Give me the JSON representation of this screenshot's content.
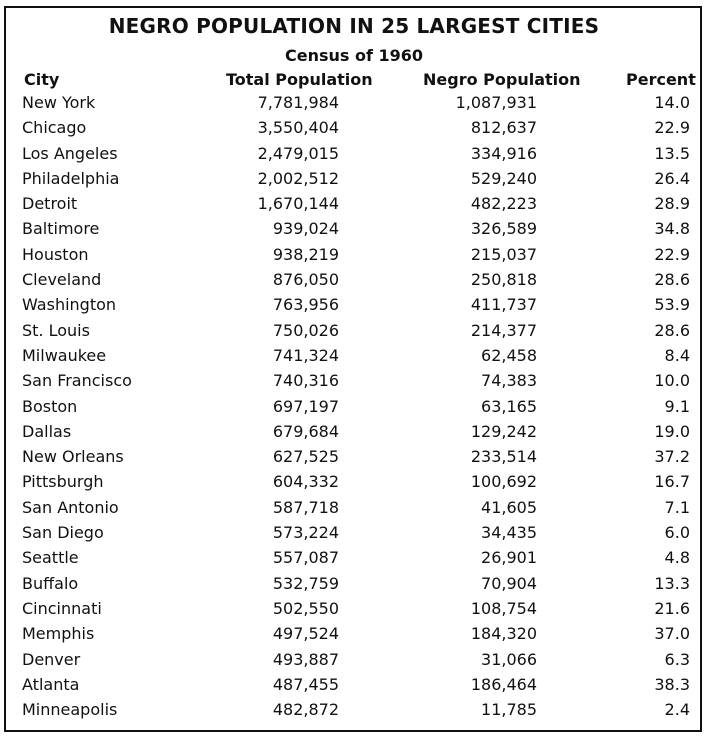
{
  "title": "NEGRO POPULATION IN 25 LARGEST CITIES",
  "subtitle": "Census of 1960",
  "headers": {
    "city": "City",
    "total": "Total Population",
    "negro": "Negro Population",
    "percent": "Percent"
  },
  "rows": [
    {
      "city": "New York",
      "total": "7,781,984",
      "negro": "1,087,931",
      "percent": "14.0"
    },
    {
      "city": "Chicago",
      "total": "3,550,404",
      "negro": "812,637",
      "percent": "22.9"
    },
    {
      "city": "Los Angeles",
      "total": "2,479,015",
      "negro": "334,916",
      "percent": "13.5"
    },
    {
      "city": "Philadelphia",
      "total": "2,002,512",
      "negro": "529,240",
      "percent": "26.4"
    },
    {
      "city": "Detroit",
      "total": "1,670,144",
      "negro": "482,223",
      "percent": "28.9"
    },
    {
      "city": "Baltimore",
      "total": "939,024",
      "negro": "326,589",
      "percent": "34.8"
    },
    {
      "city": "Houston",
      "total": "938,219",
      "negro": "215,037",
      "percent": "22.9"
    },
    {
      "city": "Cleveland",
      "total": "876,050",
      "negro": "250,818",
      "percent": "28.6"
    },
    {
      "city": "Washington",
      "total": "763,956",
      "negro": "411,737",
      "percent": "53.9"
    },
    {
      "city": "St. Louis",
      "total": "750,026",
      "negro": "214,377",
      "percent": "28.6"
    },
    {
      "city": "Milwaukee",
      "total": "741,324",
      "negro": "62,458",
      "percent": "8.4"
    },
    {
      "city": "San Francisco",
      "total": "740,316",
      "negro": "74,383",
      "percent": "10.0"
    },
    {
      "city": "Boston",
      "total": "697,197",
      "negro": "63,165",
      "percent": "9.1"
    },
    {
      "city": "Dallas",
      "total": "679,684",
      "negro": "129,242",
      "percent": "19.0"
    },
    {
      "city": "New Orleans",
      "total": "627,525",
      "negro": "233,514",
      "percent": "37.2"
    },
    {
      "city": "Pittsburgh",
      "total": "604,332",
      "negro": "100,692",
      "percent": "16.7"
    },
    {
      "city": "San Antonio",
      "total": "587,718",
      "negro": "41,605",
      "percent": "7.1"
    },
    {
      "city": "San Diego",
      "total": "573,224",
      "negro": "34,435",
      "percent": "6.0"
    },
    {
      "city": "Seattle",
      "total": "557,087",
      "negro": "26,901",
      "percent": "4.8"
    },
    {
      "city": "Buffalo",
      "total": "532,759",
      "negro": "70,904",
      "percent": "13.3"
    },
    {
      "city": "Cincinnati",
      "total": "502,550",
      "negro": "108,754",
      "percent": "21.6"
    },
    {
      "city": "Memphis",
      "total": "497,524",
      "negro": "184,320",
      "percent": "37.0"
    },
    {
      "city": "Denver",
      "total": "493,887",
      "negro": "31,066",
      "percent": "6.3"
    },
    {
      "city": "Atlanta",
      "total": "487,455",
      "negro": "186,464",
      "percent": "38.3"
    },
    {
      "city": "Minneapolis",
      "total": "482,872",
      "negro": "11,785",
      "percent": "2.4"
    }
  ]
}
